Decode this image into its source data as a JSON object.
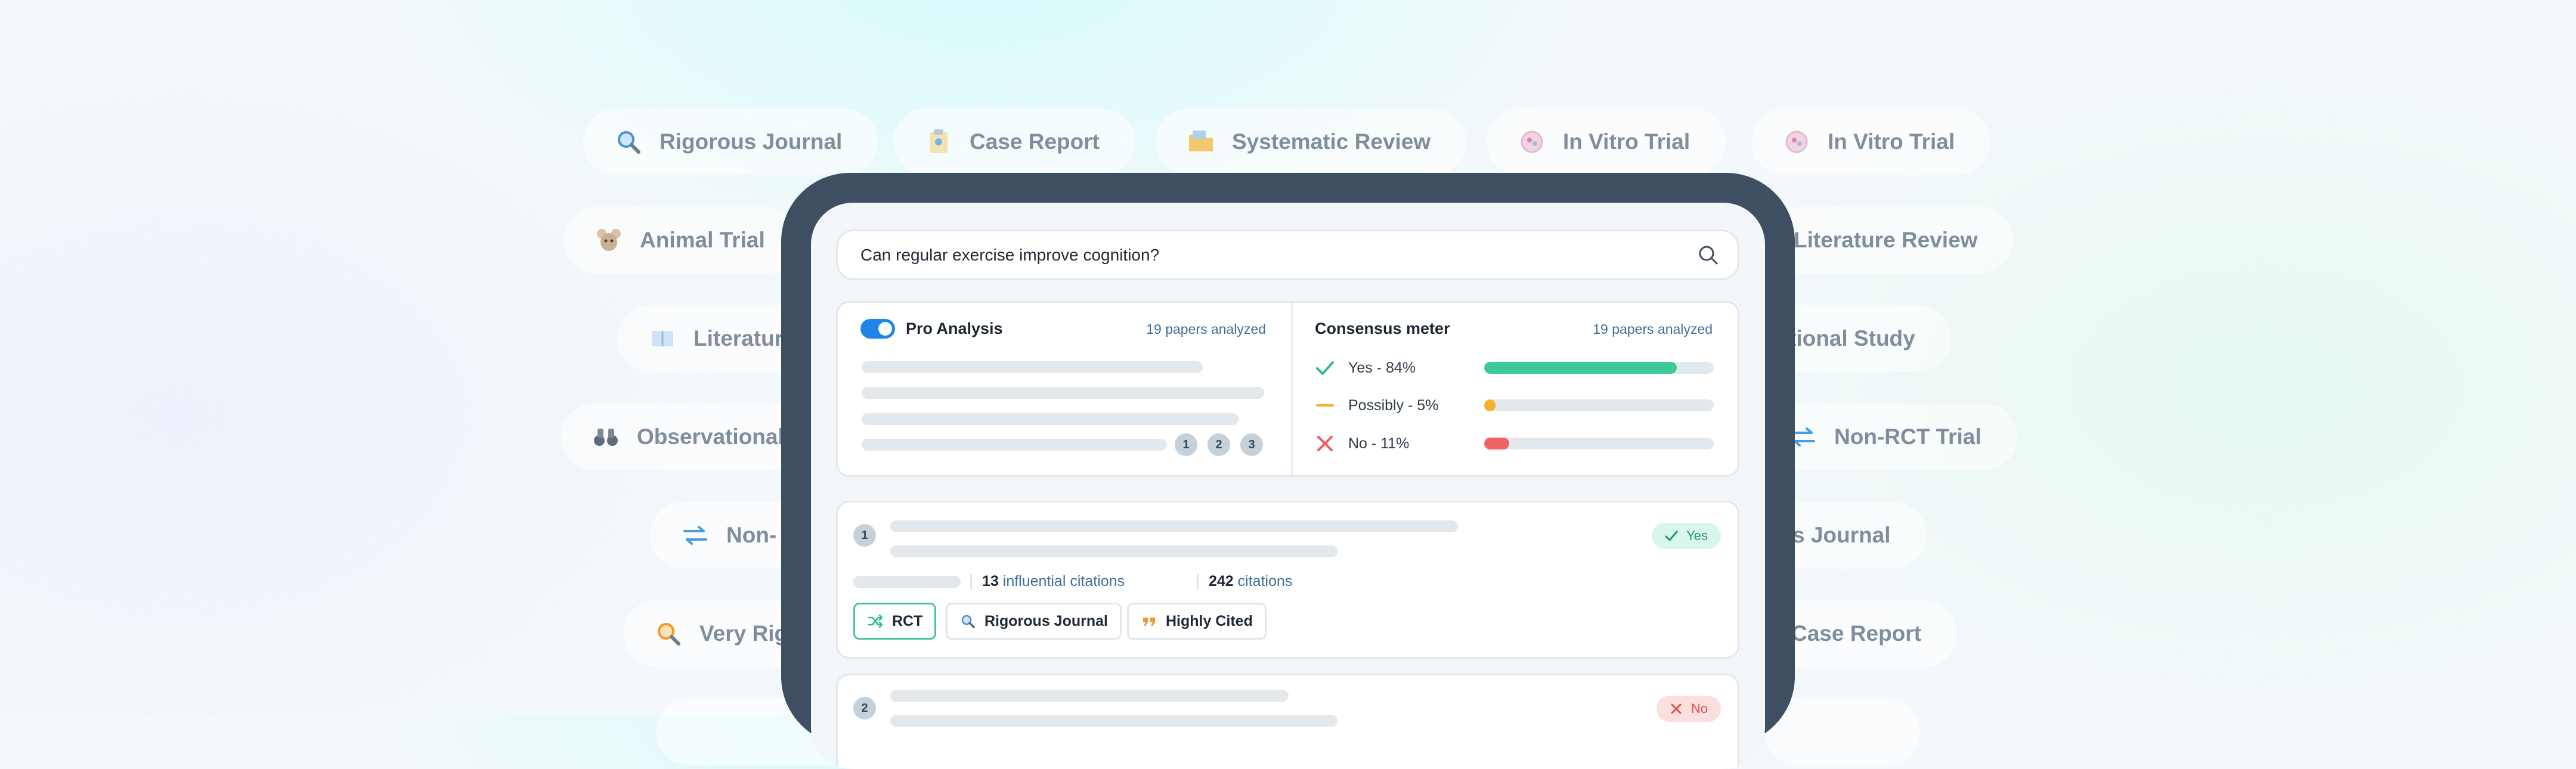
{
  "background_chips": [
    {
      "label": "Rigorous Journal",
      "icon": "magnifier-icon"
    },
    {
      "label": "Case Report",
      "icon": "clipboard-icon"
    },
    {
      "label": "Systematic Review",
      "icon": "folder-icon"
    },
    {
      "label": "In Vitro Trial",
      "icon": "petri-dish-icon"
    },
    {
      "label": "In Vitro Trial",
      "icon": "petri-dish-icon"
    },
    {
      "label": "Animal Trial",
      "icon": "mouse-icon"
    },
    {
      "label": "Literature Review",
      "icon": "book-icon"
    },
    {
      "label": "Literatur",
      "icon": "book-icon"
    },
    {
      "label": "tional Study",
      "icon": "binoculars-icon"
    },
    {
      "label": "Observational",
      "icon": "binoculars-icon"
    },
    {
      "label": "Non-RCT Trial",
      "icon": "arrows-icon"
    },
    {
      "label": "Non-",
      "icon": "arrows-icon"
    },
    {
      "label": "s Journal",
      "icon": "magnifier-icon"
    },
    {
      "label": "Very Rig",
      "icon": "magnifier-icon"
    },
    {
      "label": "Case Report",
      "icon": "clipboard-icon"
    }
  ],
  "search": {
    "query": "Can regular exercise improve cognition?",
    "icon": "search-icon"
  },
  "pro_analysis": {
    "title": "Pro Analysis",
    "papers_meta": "19 papers analyzed",
    "enabled": true,
    "references": [
      "1",
      "2",
      "3"
    ]
  },
  "consensus": {
    "title": "Consensus meter",
    "papers_meta": "19 papers analyzed",
    "rows": [
      {
        "label": "Yes - 84%",
        "percent": 84,
        "color": "#3ec99c",
        "icon": "check-icon"
      },
      {
        "label": "Possibly - 5%",
        "percent": 5,
        "color": "#f7b125",
        "icon": "dash-icon"
      },
      {
        "label": "No - 11%",
        "percent": 11,
        "color": "#ee6363",
        "icon": "x-icon"
      }
    ]
  },
  "results": [
    {
      "index": "1",
      "verdict": "Yes",
      "influential_count": "13",
      "influential_label": "influential citations",
      "citations_count": "242",
      "citations_label": "citations",
      "tags": [
        {
          "label": "RCT",
          "icon": "shuffle-icon"
        },
        {
          "label": "Rigorous Journal",
          "icon": "magnifier-icon"
        },
        {
          "label": "Highly Cited",
          "icon": "quote-icon"
        }
      ]
    },
    {
      "index": "2",
      "verdict": "No"
    }
  ],
  "colors": {
    "accent": "#1e84e8",
    "device": "#3d4f61",
    "yes_badge_bg": "#d8f6ea",
    "yes_badge_fg": "#1f9a70",
    "no_badge_bg": "#fbdede",
    "no_badge_fg": "#d9534f"
  }
}
